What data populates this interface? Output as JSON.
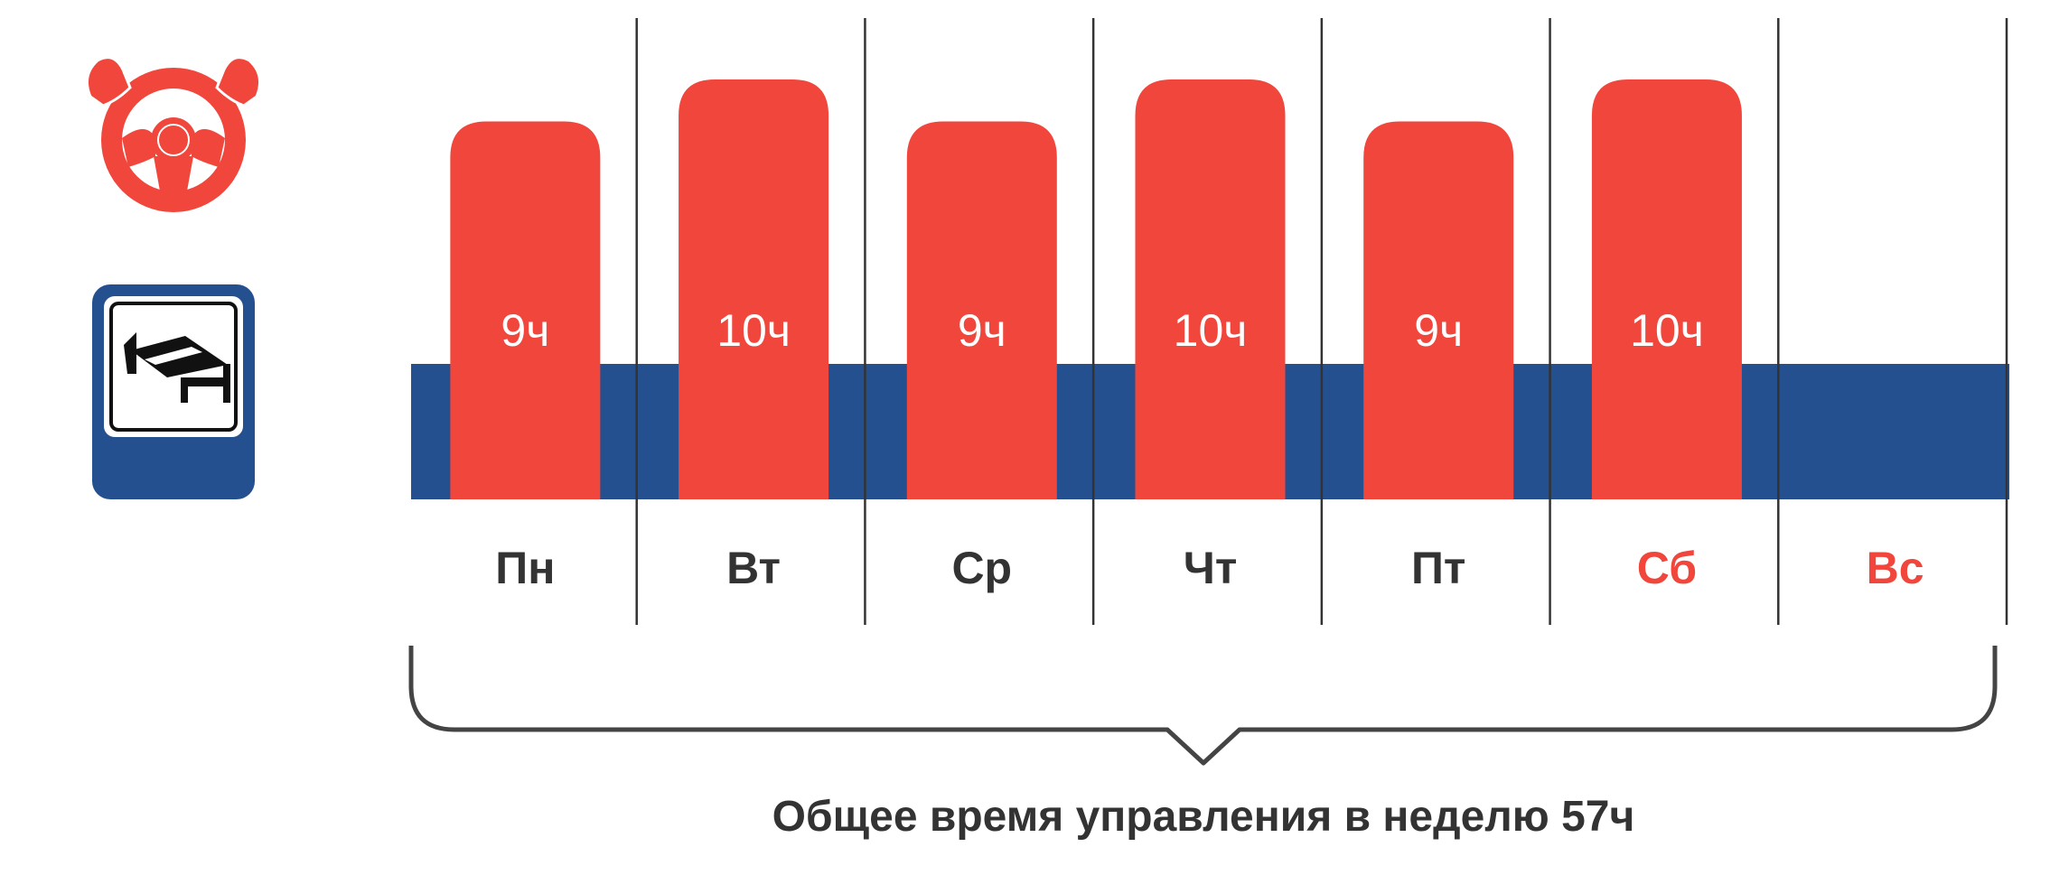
{
  "chart_data": {
    "type": "bar",
    "categories": [
      "Пн",
      "Вт",
      "Ср",
      "Чт",
      "Пт",
      "Сб",
      "Вс"
    ],
    "values": [
      9,
      10,
      9,
      10,
      9,
      10,
      null
    ],
    "value_labels": [
      "9ч",
      "10ч",
      "9ч",
      "10ч",
      "9ч",
      "10ч",
      ""
    ],
    "weekend_categories": [
      "Сб",
      "Вс"
    ],
    "summary_text": "Общее время управления в неделю 57ч"
  },
  "icons": {
    "driving": "steering-wheel-icon",
    "rest": "bed-icon"
  },
  "colors": {
    "driving": "#f0463c",
    "rest": "#24508f",
    "weekday_text": "#333333",
    "weekend_text": "#f0463c",
    "divider": "#333333"
  }
}
